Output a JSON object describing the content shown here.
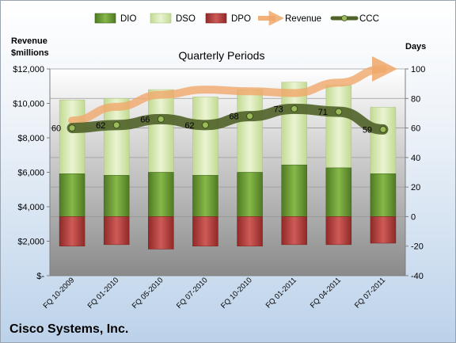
{
  "chart_data": {
    "type": "bar",
    "title": "Quarterly Periods",
    "company": "Cisco Systems, Inc.",
    "left_axis_title": [
      "Revenue",
      "$millions"
    ],
    "right_axis_title": "Days",
    "categories": [
      "FQ 10-2009",
      "FQ 01-2010",
      "FQ 05-2010",
      "FQ 07-2010",
      "FQ 10-2010",
      "FQ 01-2011",
      "FQ 04-2011",
      "FQ 07-2011"
    ],
    "left_ticks": [
      "$12,000",
      "$10,000",
      "$8,000",
      "$6,000",
      "$4,000",
      "$2,000",
      "$-"
    ],
    "right_ticks": [
      "100",
      "80",
      "60",
      "40",
      "20",
      "0",
      "-20",
      "-40"
    ],
    "ylim_right": [
      -40,
      100
    ],
    "series": [
      {
        "name": "DIO",
        "values": [
          29,
          28,
          30,
          28,
          30,
          35,
          33,
          29
        ],
        "color": "#6fa034"
      },
      {
        "name": "DSO",
        "values": [
          79,
          80,
          86,
          81,
          86,
          91,
          89,
          74
        ],
        "color": "#d9ebb4"
      },
      {
        "name": "DPO",
        "values": [
          -20,
          -19,
          -22,
          -20,
          -20,
          -19,
          -19,
          -18
        ],
        "color": "#c0504d"
      },
      {
        "name": "Revenue",
        "values": [
          9000,
          9800,
          10500,
          10800,
          10700,
          10600,
          11200,
          12000
        ],
        "color": "#f0a86a"
      },
      {
        "name": "CCC",
        "values": [
          60,
          62,
          66,
          62,
          68,
          73,
          71,
          59
        ],
        "color": "#4f6228"
      }
    ],
    "legend": [
      "DIO",
      "DSO",
      "DPO",
      "Revenue",
      "CCC"
    ],
    "grid": true,
    "legend_position": "top"
  }
}
